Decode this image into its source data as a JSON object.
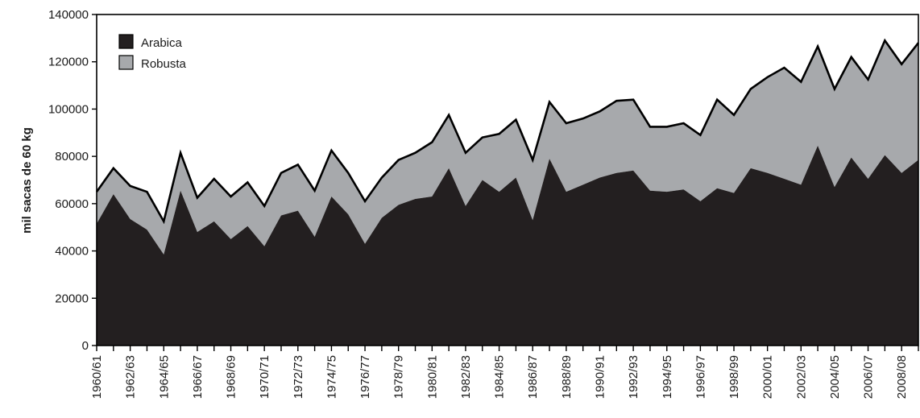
{
  "chart_data": {
    "type": "area",
    "stacked": true,
    "ylabel": "mil sacas de 60 kg",
    "xlabel": "",
    "ylim": [
      0,
      140000
    ],
    "y_ticks": [
      0,
      20000,
      40000,
      60000,
      80000,
      100000,
      120000,
      140000
    ],
    "x": [
      "1960/61",
      "1961/62",
      "1962/63",
      "1963/64",
      "1964/65",
      "1965/66",
      "1966/67",
      "1967/68",
      "1968/69",
      "1969/70",
      "1970/71",
      "1971/72",
      "1972/73",
      "1973/74",
      "1974/75",
      "1975/76",
      "1976/77",
      "1977/78",
      "1978/79",
      "1979/80",
      "1980/81",
      "1981/82",
      "1982/83",
      "1983/84",
      "1984/85",
      "1985/86",
      "1986/87",
      "1987/88",
      "1988/89",
      "1989/90",
      "1990/91",
      "1991/92",
      "1992/93",
      "1993/94",
      "1994/95",
      "1995/96",
      "1996/97",
      "1997/98",
      "1998/99",
      "1999/00",
      "2000/01",
      "2001/02",
      "2002/03",
      "2003/04",
      "2004/05",
      "2005/06",
      "2006/07",
      "2007/08",
      "2008/08",
      "2009/10"
    ],
    "x_tick_labels": [
      "1960/61",
      "1962/63",
      "1964/65",
      "1966/67",
      "1968/69",
      "1970/71",
      "1972/73",
      "1974/75",
      "1976/77",
      "1978/79",
      "1980/81",
      "1982/83",
      "1984/85",
      "1986/87",
      "1988/89",
      "1990/91",
      "1992/93",
      "1994/95",
      "1996/97",
      "1998/99",
      "2000/01",
      "2002/03",
      "2004/05",
      "2006/07",
      "2008/08"
    ],
    "series": [
      {
        "name": "Arabica",
        "color": "#231f20",
        "values": [
          51500,
          64000,
          53500,
          49000,
          38500,
          65500,
          48000,
          52500,
          45000,
          50500,
          42000,
          55000,
          57000,
          46000,
          63000,
          55500,
          43000,
          54000,
          59500,
          62000,
          63000,
          75000,
          59000,
          70000,
          65000,
          71000,
          53000,
          79000,
          65000,
          68000,
          71000,
          73000,
          74000,
          65500,
          65000,
          66000,
          61000,
          66500,
          64500,
          75000,
          73000,
          70500,
          68000,
          84500,
          67000,
          79500,
          70500,
          80500,
          73000,
          78500
        ]
      },
      {
        "name": "Robusta",
        "color": "#a7a9ac",
        "values": [
          13500,
          11000,
          14000,
          16000,
          14000,
          16000,
          14500,
          18000,
          18000,
          18500,
          17000,
          18000,
          19500,
          19500,
          19500,
          17500,
          18000,
          17000,
          19000,
          19500,
          23000,
          22500,
          22500,
          18000,
          24500,
          24500,
          25500,
          24000,
          29000,
          28000,
          28000,
          30500,
          30000,
          27000,
          27500,
          28000,
          28000,
          37500,
          33000,
          33500,
          40500,
          47000,
          43500,
          42000,
          41500,
          42500,
          42000,
          48500,
          46000,
          49500
        ]
      }
    ]
  }
}
